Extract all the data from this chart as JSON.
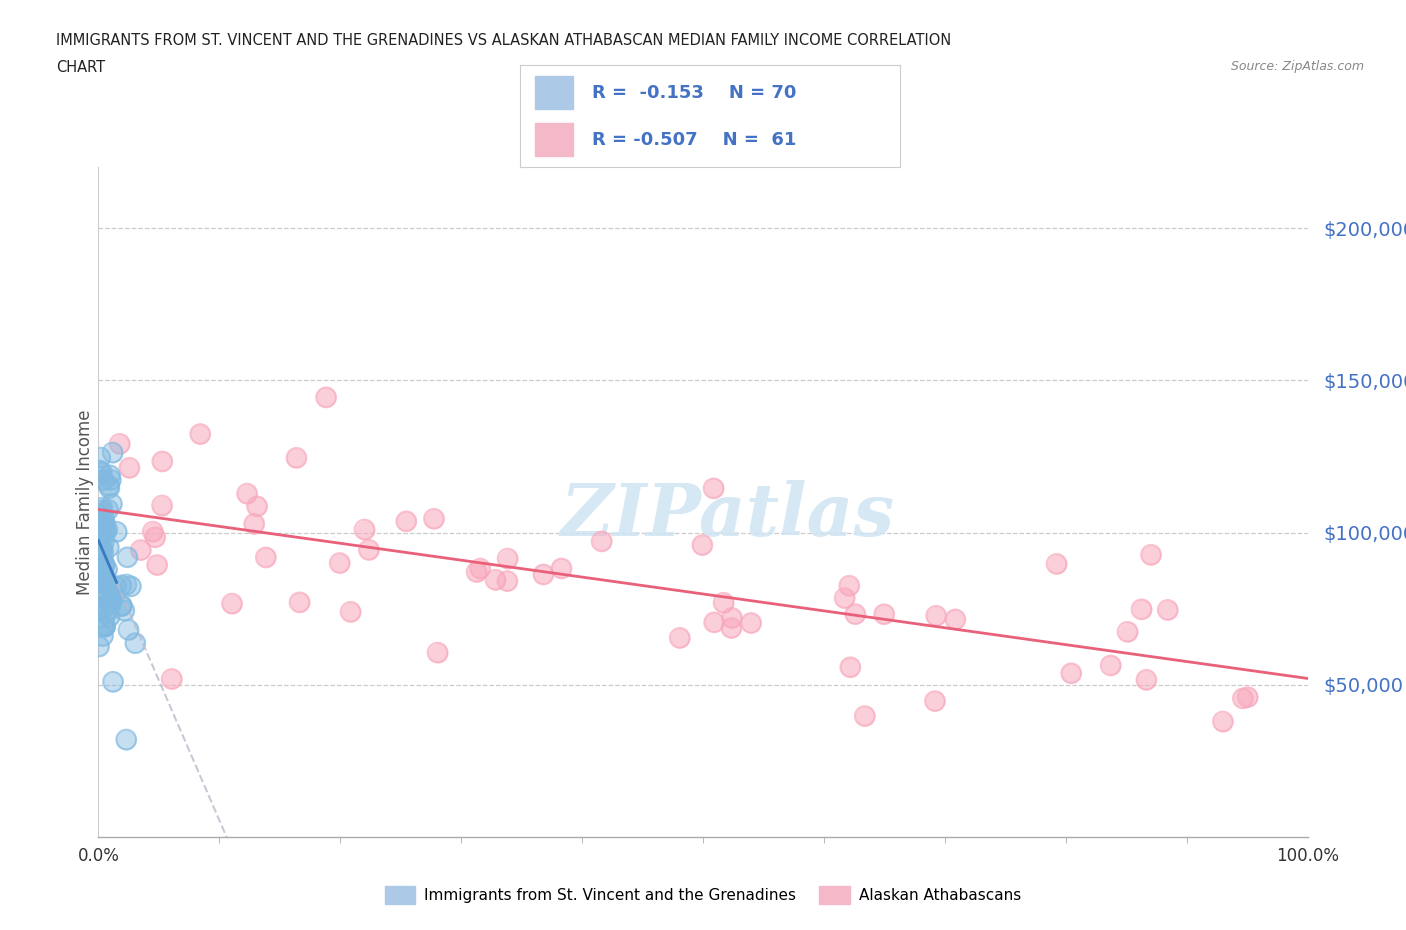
{
  "title_line1": "IMMIGRANTS FROM ST. VINCENT AND THE GRENADINES VS ALASKAN ATHABASCAN MEDIAN FAMILY INCOME CORRELATION",
  "title_line2": "CHART",
  "source_text": "Source: ZipAtlas.com",
  "ylabel": "Median Family Income",
  "xmin": 0.0,
  "xmax": 1.0,
  "ymin": 0,
  "ymax": 220000,
  "legend1_label": "Immigrants from St. Vincent and the Grenadines",
  "legend2_label": "Alaskan Athabascans",
  "color_blue": "#7fb8e0",
  "color_pink": "#f8a8bc",
  "color_blue_line": "#3a7abf",
  "color_pink_line": "#e8607a",
  "color_dashed_line": "#bbbbcc",
  "ytick_labels": [
    "$50,000",
    "$100,000",
    "$150,000",
    "$200,000"
  ],
  "ytick_values": [
    50000,
    100000,
    150000,
    200000
  ],
  "background_color": "#ffffff",
  "watermark_text": "ZIPatlas",
  "watermark_color": "#d0e4f4"
}
